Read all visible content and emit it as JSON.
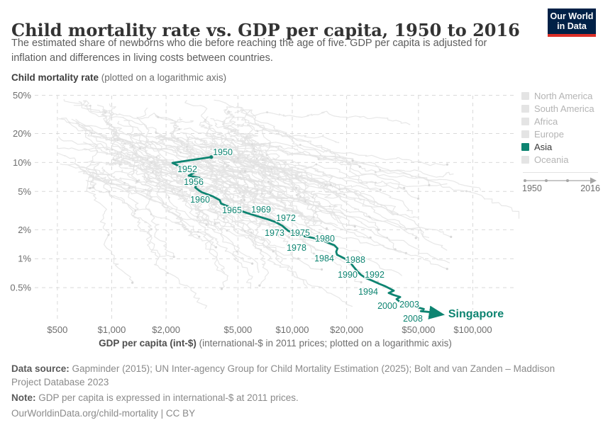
{
  "colors": {
    "accent": "#0d8471",
    "background_line": "#e3e3e3",
    "grid": "#d9d9d9",
    "logo_navy": "#002147",
    "logo_red": "#dc2f27"
  },
  "header": {
    "title": "Child mortality rate vs. GDP per capita, 1950 to 2016",
    "subtitle": "The estimated share of newborns who die before reaching the age of five. GDP per capita is adjusted for inflation and differences in living costs between countries.",
    "logo": {
      "line1": "Our World",
      "line2": "in Data"
    }
  },
  "chart_data": {
    "type": "scatter",
    "variant": "connected-scatter",
    "title": "Child mortality rate vs. GDP per capita, 1950 to 2016",
    "y_axis": {
      "label_bold": "Child mortality rate",
      "label_rest": " (plotted on a logarithmic axis)",
      "scale": "log",
      "range": [
        "0.25%",
        "55%"
      ],
      "ticks": [
        {
          "label": "50%",
          "value": 50
        },
        {
          "label": "20%",
          "value": 20
        },
        {
          "label": "10%",
          "value": 10
        },
        {
          "label": "5%",
          "value": 5
        },
        {
          "label": "2%",
          "value": 2
        },
        {
          "label": "1%",
          "value": 1
        },
        {
          "label": "0.5%",
          "value": 0.5
        }
      ]
    },
    "x_axis": {
      "label_bold": "GDP per capita (int-$)",
      "label_rest": " (international-$ in 2011 prices; plotted on a logarithmic axis)",
      "scale": "log",
      "range": [
        "$400",
        "$130,000"
      ],
      "ticks": [
        {
          "label": "$500",
          "value": 500
        },
        {
          "label": "$1,000",
          "value": 1000
        },
        {
          "label": "$2,000",
          "value": 2000
        },
        {
          "label": "$5,000",
          "value": 5000
        },
        {
          "label": "$10,000",
          "value": 10000
        },
        {
          "label": "$20,000",
          "value": 20000
        },
        {
          "label": "$50,000",
          "value": 50000
        },
        {
          "label": "$100,000",
          "value": 100000
        }
      ]
    },
    "highlight_series": {
      "name": "Singapore",
      "continent": "Asia",
      "color": "#0d8471",
      "points_format": [
        "year",
        "gdp_per_capita_int_dollars",
        "child_mortality_pct"
      ],
      "points": [
        [
          1950,
          3560,
          11.4
        ],
        [
          1951,
          2750,
          10.6
        ],
        [
          1952,
          2170,
          9.9
        ],
        [
          1953,
          2350,
          9.2
        ],
        [
          1954,
          2550,
          8.5
        ],
        [
          1955,
          2850,
          7.8
        ],
        [
          1956,
          2670,
          7.3
        ],
        [
          1957,
          3070,
          6.9
        ],
        [
          1958,
          2870,
          6.4
        ],
        [
          1959,
          2950,
          5.9
        ],
        [
          1960,
          2900,
          5.5
        ],
        [
          1961,
          3050,
          5.1
        ],
        [
          1962,
          3160,
          4.9
        ],
        [
          1963,
          3630,
          4.45
        ],
        [
          1964,
          3970,
          4.05
        ],
        [
          1965,
          4030,
          3.75
        ],
        [
          1966,
          4400,
          3.5
        ],
        [
          1967,
          4800,
          3.3
        ],
        [
          1968,
          5300,
          3.1
        ],
        [
          1969,
          5900,
          2.9
        ],
        [
          1970,
          6600,
          2.72
        ],
        [
          1971,
          7400,
          2.55
        ],
        [
          1972,
          8100,
          2.4
        ],
        [
          1973,
          8800,
          2.2
        ],
        [
          1974,
          9200,
          2.05
        ],
        [
          1975,
          9500,
          1.95
        ],
        [
          1976,
          10100,
          1.85
        ],
        [
          1977,
          10800,
          1.78
        ],
        [
          1978,
          11600,
          1.72
        ],
        [
          1979,
          12700,
          1.66
        ],
        [
          1980,
          13900,
          1.6
        ],
        [
          1981,
          15100,
          1.52
        ],
        [
          1982,
          16000,
          1.45
        ],
        [
          1983,
          17100,
          1.38
        ],
        [
          1984,
          17800,
          1.28
        ],
        [
          1985,
          17500,
          1.18
        ],
        [
          1986,
          17700,
          1.1
        ],
        [
          1987,
          19000,
          1.03
        ],
        [
          1988,
          20600,
          0.95
        ],
        [
          1989,
          21800,
          0.83
        ],
        [
          1990,
          22900,
          0.74
        ],
        [
          1991,
          24000,
          0.68
        ],
        [
          1992,
          25500,
          0.63
        ],
        [
          1993,
          27800,
          0.59
        ],
        [
          1994,
          30200,
          0.55
        ],
        [
          1995,
          32500,
          0.52
        ],
        [
          1996,
          34600,
          0.49
        ],
        [
          1997,
          36500,
          0.465
        ],
        [
          1998,
          34200,
          0.44
        ],
        [
          1999,
          36400,
          0.42
        ],
        [
          2000,
          39600,
          0.4
        ],
        [
          2001,
          37800,
          0.38
        ],
        [
          2002,
          38800,
          0.365
        ],
        [
          2003,
          39800,
          0.35
        ],
        [
          2004,
          43400,
          0.335
        ],
        [
          2005,
          46500,
          0.32
        ],
        [
          2006,
          50000,
          0.31
        ],
        [
          2007,
          53500,
          0.3
        ],
        [
          2008,
          53000,
          0.29
        ],
        [
          2009,
          51500,
          0.285
        ],
        [
          2010,
          56500,
          0.28
        ],
        [
          2011,
          58500,
          0.277
        ],
        [
          2012,
          60000,
          0.274
        ],
        [
          2013,
          61500,
          0.272
        ],
        [
          2014,
          63000,
          0.27
        ],
        [
          2015,
          64000,
          0.268
        ],
        [
          2016,
          65000,
          0.266
        ]
      ],
      "labeled_years": [
        1950,
        1952,
        1956,
        1960,
        1965,
        1969,
        1972,
        1973,
        1975,
        1978,
        1980,
        1984,
        1988,
        1990,
        1992,
        1994,
        2000,
        2003,
        2008
      ],
      "end_label": "Singapore"
    },
    "background_series": {
      "description": "all other countries, de-emphasized",
      "color": "#e3e3e3",
      "count": 110,
      "seed": 11,
      "year_start": 1950,
      "year_end": 2016
    },
    "grid": true,
    "legend_position": "right"
  },
  "legend": {
    "items": [
      {
        "label": "North America",
        "active": false
      },
      {
        "label": "South America",
        "active": false
      },
      {
        "label": "Africa",
        "active": false
      },
      {
        "label": "Europe",
        "active": false
      },
      {
        "label": "Asia",
        "active": true,
        "color": "#0d8471"
      },
      {
        "label": "Oceania",
        "active": false
      }
    ],
    "timeline": {
      "start": "1950",
      "end": "2016"
    }
  },
  "footer": {
    "source_bold": "Data source:",
    "source_text": " Gapminder (2015); UN Inter-agency Group for Child Mortality Estimation (2025); Bolt and van Zanden – Maddison Project Database 2023",
    "note_bold": "Note:",
    "note_text": " GDP per capita is expressed in international-$ at 2011 prices.",
    "link": "OurWorldinData.org/child-mortality | CC BY"
  }
}
